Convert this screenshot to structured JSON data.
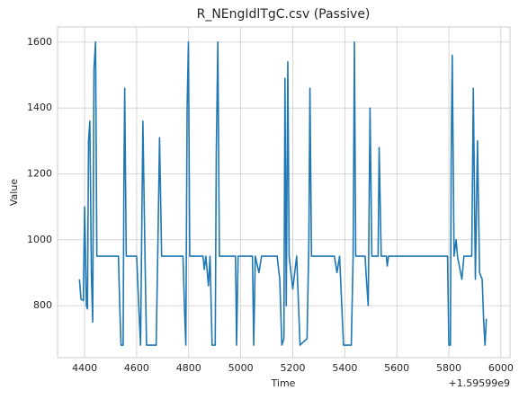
{
  "chart_data": {
    "type": "line",
    "title": "R_NEngIdlTgC.csv (Passive)",
    "x_label": "Time",
    "y_label": "Value",
    "x_offset_label": "+1.59599e9",
    "x": [
      4380,
      4386,
      4395,
      4400,
      4407,
      4411,
      4415,
      4420,
      4426,
      4431,
      4436,
      4442,
      4447,
      4530,
      4535,
      4540,
      4548,
      4551,
      4554,
      4560,
      4600,
      4608,
      4615,
      4624,
      4632,
      4638,
      4675,
      4682,
      4688,
      4696,
      4778,
      4784,
      4789,
      4794,
      4799,
      4804,
      4855,
      4860,
      4866,
      4876,
      4882,
      4890,
      4902,
      4906,
      4912,
      4918,
      4980,
      4984,
      4990,
      5045,
      5050,
      5056,
      5070,
      5080,
      5140,
      5150,
      5158,
      5166,
      5170,
      5175,
      5181,
      5186,
      5200,
      5215,
      5228,
      5255,
      5262,
      5266,
      5272,
      5360,
      5370,
      5380,
      5395,
      5425,
      5432,
      5437,
      5442,
      5478,
      5483,
      5490,
      5497,
      5504,
      5528,
      5532,
      5540,
      5560,
      5563,
      5568,
      5795,
      5800,
      5806,
      5809,
      5813,
      5820,
      5828,
      5833,
      5850,
      5858,
      5888,
      5894,
      5902,
      5910,
      5918,
      5928,
      5934,
      5939,
      5944
    ],
    "series": [
      {
        "color": "#1f77b4",
        "values": [
          880,
          820,
          815,
          1100,
          800,
          790,
          1300,
          1360,
          900,
          750,
          1520,
          1600,
          950,
          950,
          800,
          680,
          680,
          1180,
          1460,
          950,
          950,
          800,
          680,
          1360,
          950,
          680,
          680,
          1000,
          1310,
          950,
          950,
          790,
          680,
          1400,
          1600,
          950,
          950,
          910,
          950,
          860,
          950,
          680,
          680,
          1260,
          1600,
          950,
          950,
          680,
          950,
          950,
          680,
          950,
          900,
          950,
          950,
          880,
          680,
          700,
          1490,
          800,
          1540,
          950,
          850,
          950,
          680,
          700,
          1000,
          1460,
          950,
          950,
          900,
          950,
          680,
          680,
          950,
          1600,
          950,
          950,
          880,
          800,
          1400,
          950,
          950,
          1280,
          950,
          950,
          920,
          950,
          950,
          680,
          680,
          1250,
          1560,
          950,
          1000,
          950,
          880,
          950,
          950,
          1460,
          880,
          1300,
          900,
          880,
          750,
          680,
          760
        ]
      }
    ],
    "xlim": [
      4296,
      6035
    ],
    "ylim": [
      642,
      1646
    ],
    "xticks": [
      4400,
      4600,
      4800,
      5000,
      5200,
      5400,
      5600,
      5800,
      6000
    ],
    "yticks": [
      800,
      1000,
      1200,
      1400,
      1600
    ],
    "grid": true
  }
}
